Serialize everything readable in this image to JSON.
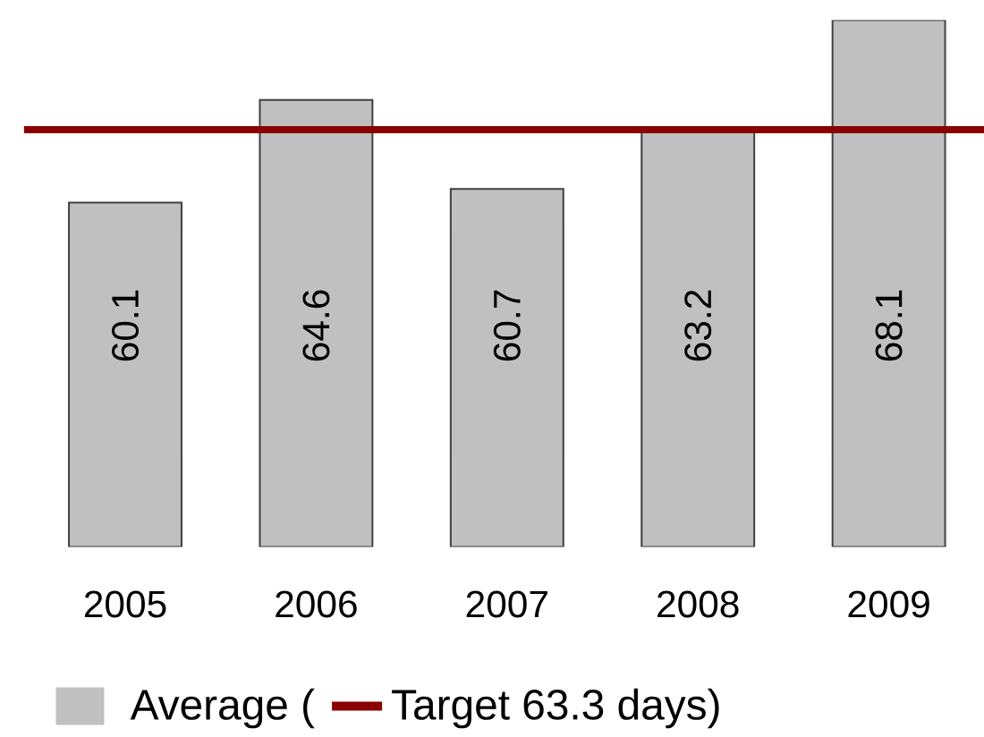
{
  "chart_data": {
    "type": "bar",
    "categories": [
      "2005",
      "2006",
      "2007",
      "2008",
      "2009"
    ],
    "series": [
      {
        "name": "Average (",
        "color": "#c0c0c0",
        "values": [
          60.1,
          64.6,
          60.7,
          63.2,
          68.1
        ]
      }
    ],
    "ylim": [
      45,
      68.1
    ],
    "tick_labels": "x",
    "data_labels": true,
    "ref_lines": [
      {
        "axis": "y",
        "value": 63.3,
        "label": "Target 63.3 days)",
        "color": "#8b0000"
      }
    ],
    "legend": "bottom left"
  }
}
